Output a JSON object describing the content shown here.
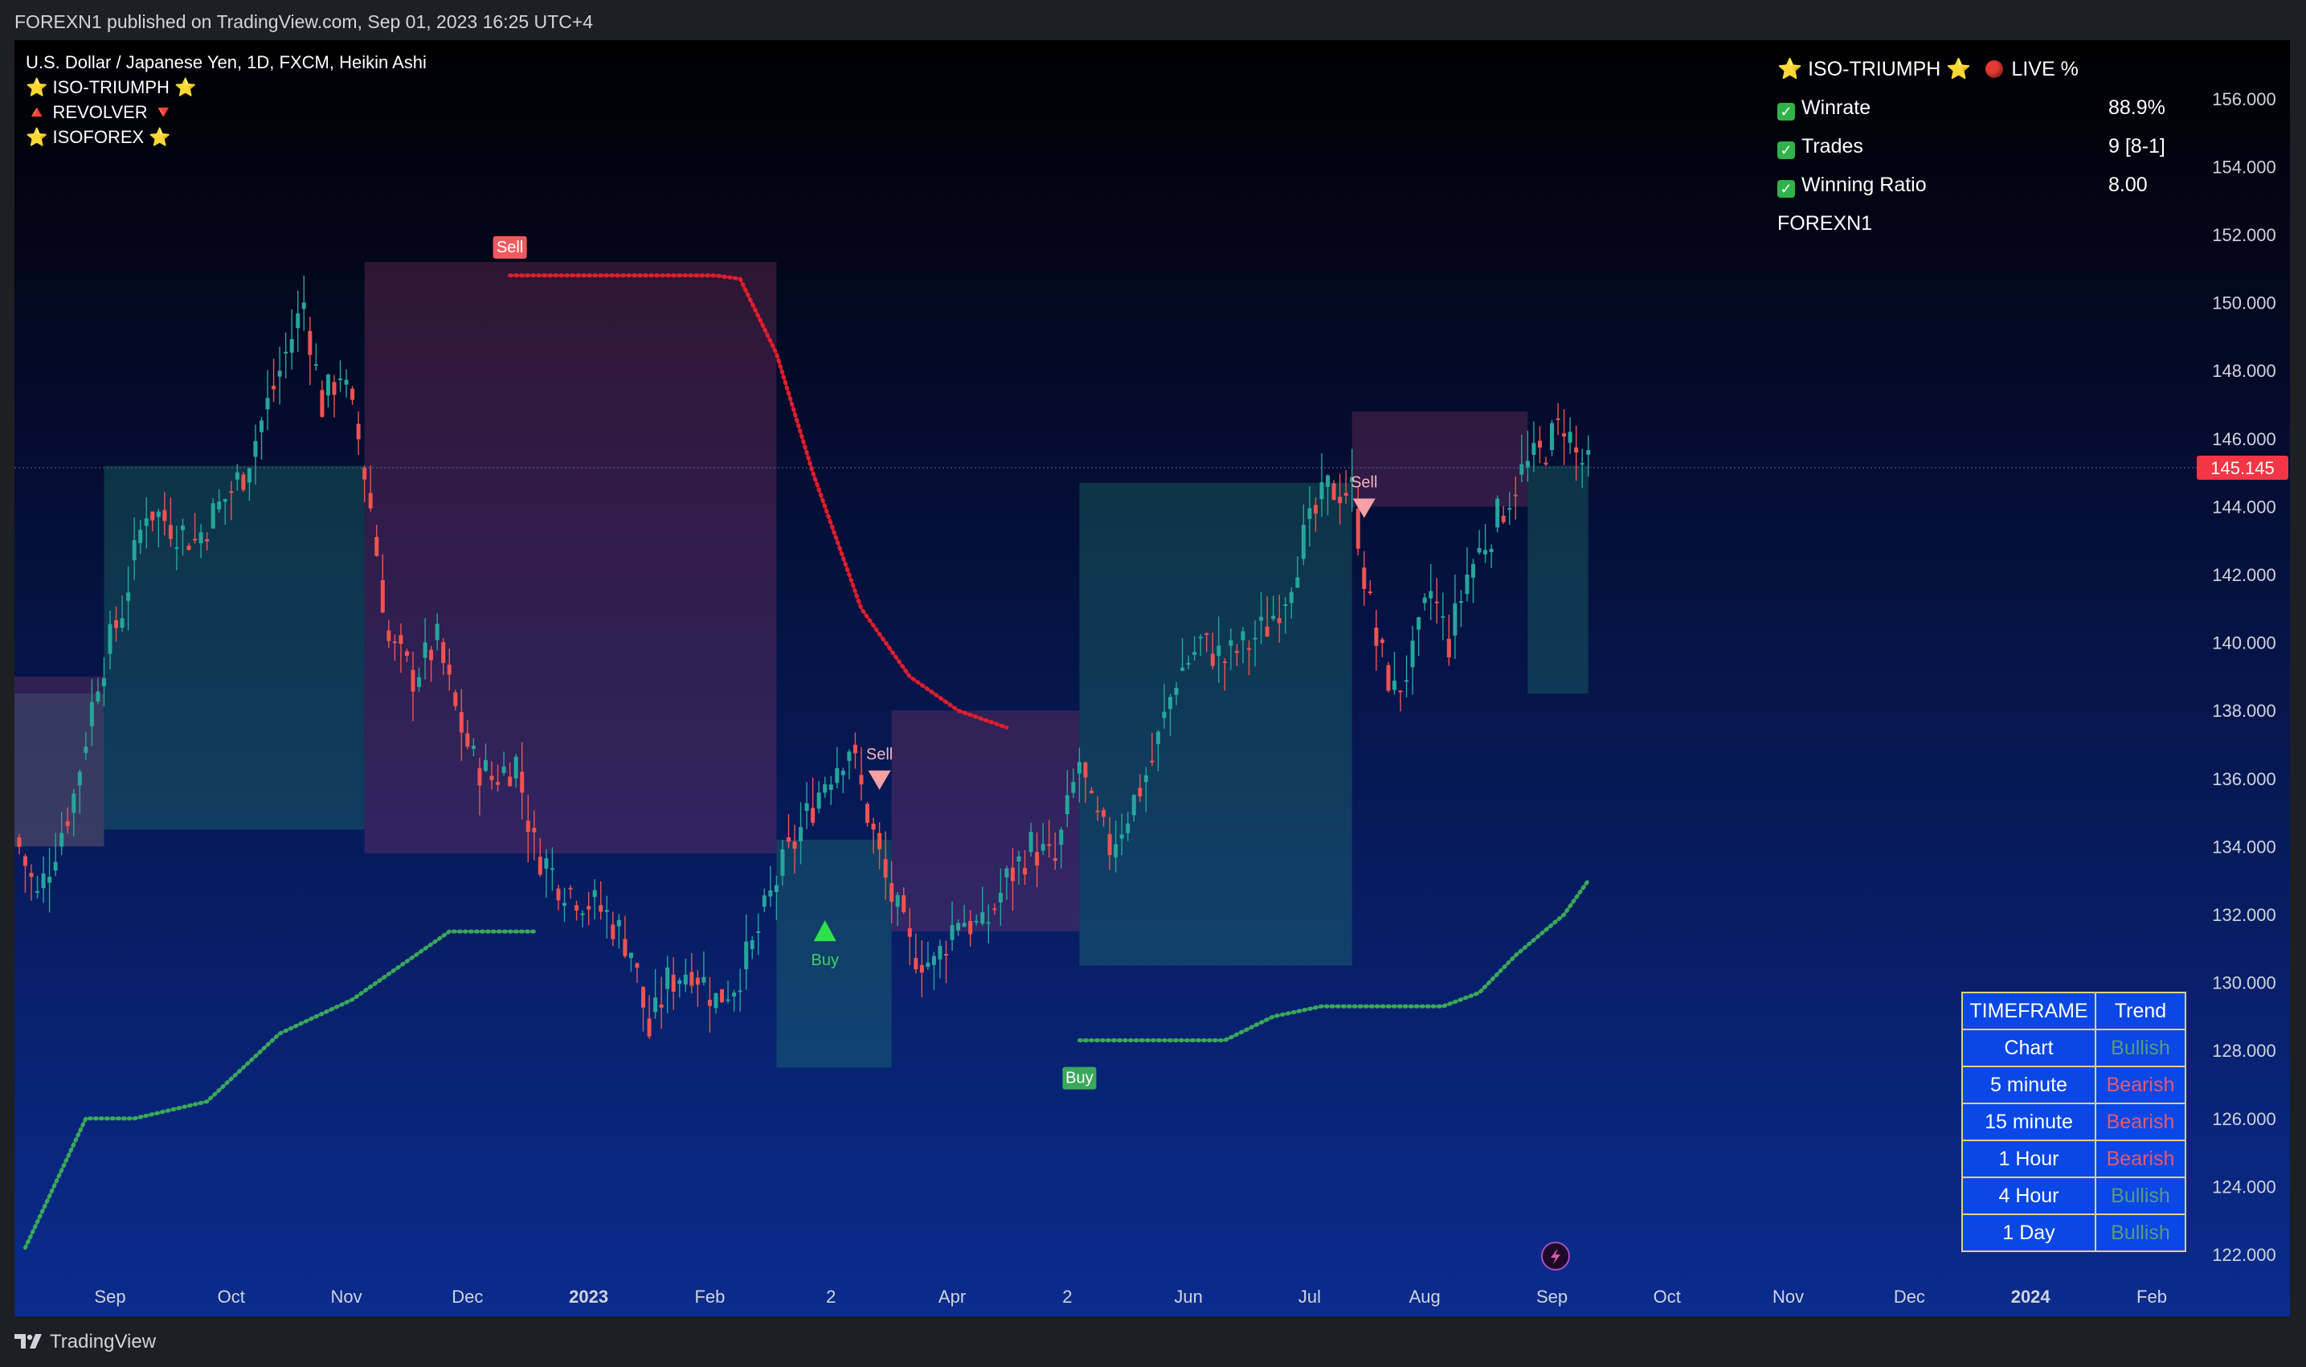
{
  "header": {
    "publisher_line": "FOREXN1 published on TradingView.com, Sep 01, 2023 16:25 UTC+4"
  },
  "legend": {
    "symbol_line": "U.S. Dollar / Japanese Yen, 1D, FXCM, Heikin Ashi",
    "indicators": [
      "⭐ ISO-TRIUMPH ⭐",
      "🔺 REVOLVER 🔻",
      "⭐ ISOFOREX ⭐"
    ]
  },
  "stats_panel": {
    "title": "⭐ ISO-TRIUMPH ⭐",
    "live_label": "LIVE %",
    "rows": [
      {
        "label": "Winrate",
        "value": "88.9%"
      },
      {
        "label": "Trades",
        "value": "9 [8-1]"
      },
      {
        "label": "Winning Ratio",
        "value": "8.00"
      }
    ],
    "footer": "FOREXN1"
  },
  "trend_table": {
    "headers": [
      "TIMEFRAME",
      "Trend"
    ],
    "rows": [
      {
        "timeframe": "Chart",
        "trend": "Bullish"
      },
      {
        "timeframe": "5 minute",
        "trend": "Bearish"
      },
      {
        "timeframe": "15 minute",
        "trend": "Bearish"
      },
      {
        "timeframe": "1 Hour",
        "trend": "Bearish"
      },
      {
        "timeframe": "4 Hour",
        "trend": "Bullish"
      },
      {
        "timeframe": "1 Day",
        "trend": "Bullish"
      }
    ]
  },
  "footer": {
    "brand": "TradingView"
  },
  "colors": {
    "bull_candle": "#26a69a",
    "bear_candle": "#ef5350",
    "buy_signal": "#2fb34a",
    "sell_signal": "#f23645",
    "price_label": "#f23645",
    "bg_top": "#000000",
    "bg_bottom": "#0a2a8a"
  },
  "chart_data": {
    "type": "candlestick",
    "title": "U.S. Dollar / Japanese Yen, 1D, FXCM, Heikin Ashi",
    "ylim": [
      121.4,
      157.2
    ],
    "y_ticks": [
      "156.000",
      "154.000",
      "152.000",
      "150.000",
      "148.000",
      "146.000",
      "144.000",
      "142.000",
      "140.000",
      "138.000",
      "136.000",
      "134.000",
      "132.000",
      "130.000",
      "128.000",
      "126.000",
      "124.000",
      "122.000"
    ],
    "x_ticks": [
      {
        "label": "Sep",
        "bold": false,
        "x": 0.0
      },
      {
        "label": "Oct",
        "bold": false,
        "x": 1.0
      },
      {
        "label": "Nov",
        "bold": false,
        "x": 1.95
      },
      {
        "label": "Dec",
        "bold": false,
        "x": 2.95
      },
      {
        "label": "2023",
        "bold": true,
        "x": 3.95
      },
      {
        "label": "Feb",
        "bold": false,
        "x": 4.95
      },
      {
        "label": "2",
        "bold": false,
        "x": 5.95
      },
      {
        "label": "Apr",
        "bold": false,
        "x": 6.95
      },
      {
        "label": "2",
        "bold": false,
        "x": 7.9
      },
      {
        "label": "Jun",
        "bold": false,
        "x": 8.9
      },
      {
        "label": "Jul",
        "bold": false,
        "x": 9.9
      },
      {
        "label": "Aug",
        "bold": false,
        "x": 10.85
      },
      {
        "label": "Sep",
        "bold": false,
        "x": 11.9
      },
      {
        "label": "Oct",
        "bold": false,
        "x": 12.85
      },
      {
        "label": "Nov",
        "bold": false,
        "x": 13.85
      },
      {
        "label": "Dec",
        "bold": false,
        "x": 14.85
      },
      {
        "label": "2024",
        "bold": true,
        "x": 15.85
      },
      {
        "label": "Feb",
        "bold": false,
        "x": 16.85
      }
    ],
    "x_range": [
      -0.8,
      17.8
    ],
    "last_price": "145.145",
    "last_price_value": 145.145,
    "close_path": [
      [
        -0.8,
        134.5
      ],
      [
        -0.6,
        132.5
      ],
      [
        -0.3,
        135.5
      ],
      [
        -0.1,
        139.0
      ],
      [
        0.1,
        141.0
      ],
      [
        0.3,
        144.0
      ],
      [
        0.5,
        143.5
      ],
      [
        0.7,
        143.0
      ],
      [
        0.9,
        144.0
      ],
      [
        1.1,
        145.0
      ],
      [
        1.3,
        147.0
      ],
      [
        1.5,
        149.0
      ],
      [
        1.6,
        150.0
      ],
      [
        1.75,
        147.0
      ],
      [
        1.9,
        148.0
      ],
      [
        2.05,
        146.0
      ],
      [
        2.15,
        144.0
      ],
      [
        2.3,
        140.0
      ],
      [
        2.5,
        139.0
      ],
      [
        2.7,
        140.0
      ],
      [
        2.85,
        138.0
      ],
      [
        3.0,
        136.5
      ],
      [
        3.15,
        136.0
      ],
      [
        3.35,
        136.5
      ],
      [
        3.5,
        134.0
      ],
      [
        3.7,
        133.0
      ],
      [
        3.9,
        132.5
      ],
      [
        4.1,
        132.0
      ],
      [
        4.3,
        131.0
      ],
      [
        4.45,
        128.5
      ],
      [
        4.6,
        130.0
      ],
      [
        4.8,
        130.5
      ],
      [
        5.0,
        129.5
      ],
      [
        5.15,
        130.0
      ],
      [
        5.3,
        131.0
      ],
      [
        5.5,
        133.0
      ],
      [
        5.7,
        134.5
      ],
      [
        5.9,
        136.0
      ],
      [
        6.1,
        137.0
      ],
      [
        6.25,
        135.0
      ],
      [
        6.4,
        133.0
      ],
      [
        6.6,
        131.0
      ],
      [
        6.8,
        130.5
      ],
      [
        7.0,
        132.0
      ],
      [
        7.2,
        131.5
      ],
      [
        7.4,
        133.0
      ],
      [
        7.6,
        134.0
      ],
      [
        7.8,
        133.5
      ],
      [
        8.0,
        136.5
      ],
      [
        8.1,
        135.0
      ],
      [
        8.25,
        134.0
      ],
      [
        8.4,
        135.0
      ],
      [
        8.6,
        136.5
      ],
      [
        8.8,
        139.0
      ],
      [
        9.0,
        140.0
      ],
      [
        9.2,
        139.5
      ],
      [
        9.4,
        140.0
      ],
      [
        9.55,
        140.5
      ],
      [
        9.7,
        141.5
      ],
      [
        9.85,
        143.0
      ],
      [
        10.05,
        144.5
      ],
      [
        10.25,
        144.5
      ],
      [
        10.35,
        142.0
      ],
      [
        10.45,
        140.0
      ],
      [
        10.6,
        138.5
      ],
      [
        10.75,
        139.5
      ],
      [
        10.9,
        141.5
      ],
      [
        11.05,
        140.0
      ],
      [
        11.2,
        142.0
      ],
      [
        11.35,
        143.0
      ],
      [
        11.5,
        144.0
      ],
      [
        11.65,
        145.0
      ],
      [
        11.8,
        145.5
      ],
      [
        11.9,
        146.0
      ],
      [
        12.0,
        146.5
      ],
      [
        12.1,
        145.5
      ],
      [
        12.2,
        145.1
      ]
    ],
    "revolver_bands": [
      {
        "dir": "bull",
        "x0": -0.8,
        "x1": -0.05,
        "top": 138.5,
        "bottom": 134.0
      },
      {
        "dir": "bear",
        "x0": -0.8,
        "x1": -0.05,
        "top": 139.0,
        "bottom": 134.0
      },
      {
        "dir": "bull",
        "x0": -0.05,
        "x1": 2.1,
        "top": 145.2,
        "bottom": 134.5
      },
      {
        "dir": "bear",
        "x0": 2.1,
        "x1": 5.5,
        "top": 151.2,
        "bottom": 133.8
      },
      {
        "dir": "bull",
        "x0": 5.5,
        "x1": 6.45,
        "top": 134.2,
        "bottom": 127.5
      },
      {
        "dir": "bear",
        "x0": 6.45,
        "x1": 8.0,
        "top": 138.0,
        "bottom": 131.5
      },
      {
        "dir": "bull",
        "x0": 8.0,
        "x1": 10.25,
        "top": 144.7,
        "bottom": 130.5
      },
      {
        "dir": "bear",
        "x0": 10.25,
        "x1": 11.7,
        "top": 146.8,
        "bottom": 144.0
      },
      {
        "dir": "bull",
        "x0": 11.7,
        "x1": 12.2,
        "top": 145.2,
        "bottom": 138.5
      }
    ],
    "isoforex_sell_line": [
      [
        3.3,
        150.8
      ],
      [
        5.0,
        150.8
      ],
      [
        5.2,
        150.7
      ],
      [
        5.5,
        148.5
      ],
      [
        5.8,
        145.0
      ],
      [
        6.2,
        141.0
      ],
      [
        6.6,
        139.0
      ],
      [
        7.0,
        138.0
      ],
      [
        7.4,
        137.5
      ]
    ],
    "isoforex_buy_line_1": [
      [
        -0.7,
        122.2
      ],
      [
        -0.2,
        126.0
      ],
      [
        0.2,
        126.0
      ],
      [
        0.8,
        126.5
      ],
      [
        1.4,
        128.5
      ],
      [
        2.0,
        129.5
      ],
      [
        2.4,
        130.5
      ],
      [
        2.8,
        131.5
      ],
      [
        3.5,
        131.5
      ]
    ],
    "isoforex_buy_line_2": [
      [
        8.0,
        128.3
      ],
      [
        9.2,
        128.3
      ],
      [
        9.6,
        129.0
      ],
      [
        10.0,
        129.3
      ],
      [
        11.0,
        129.3
      ],
      [
        11.3,
        129.7
      ],
      [
        11.6,
        130.8
      ],
      [
        12.0,
        132.0
      ],
      [
        12.2,
        133.0
      ]
    ],
    "signals": [
      {
        "type": "Sell",
        "x": 3.3,
        "y": 151.2,
        "style": "box"
      },
      {
        "type": "Buy",
        "x": 5.9,
        "y": 131.5,
        "style": "triangle"
      },
      {
        "type": "Sell",
        "x": 6.35,
        "y": 136.0,
        "style": "triangle"
      },
      {
        "type": "Buy",
        "x": 8.0,
        "y": 127.8,
        "style": "box"
      },
      {
        "type": "Sell",
        "x": 10.35,
        "y": 144.0,
        "style": "triangle"
      }
    ]
  }
}
